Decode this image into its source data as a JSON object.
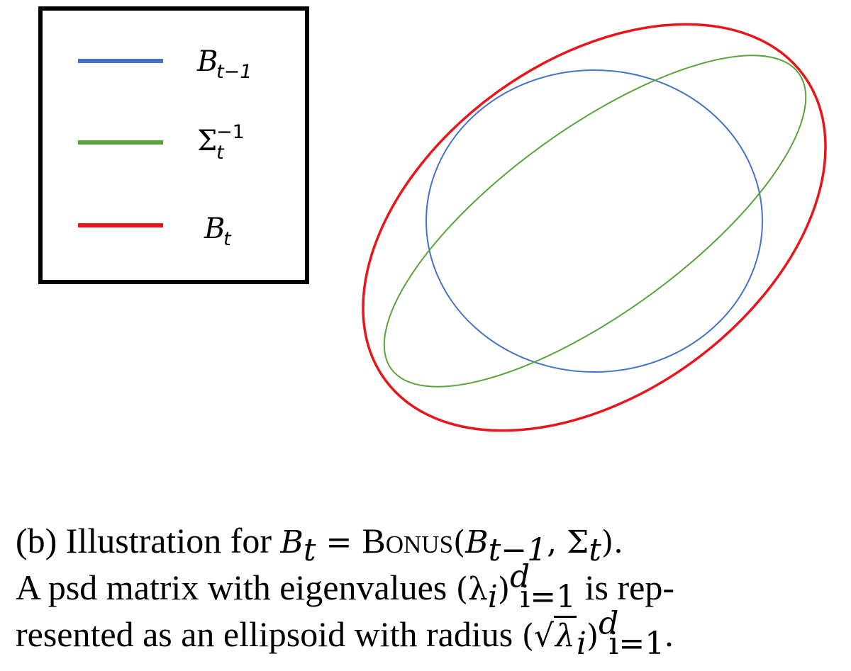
{
  "legend": {
    "items": [
      {
        "symbol": "B",
        "subscript": "t−1",
        "superscript": "",
        "color": "#4472C4"
      },
      {
        "symbol": "Σ",
        "subscript": "t",
        "superscript": "−1",
        "color": "#5AA33A"
      },
      {
        "symbol": "B",
        "subscript": "t",
        "superscript": "",
        "color": "#E8151B"
      }
    ]
  },
  "ellipses": [
    {
      "name": "B_{t-1}",
      "color": "#4472C4"
    },
    {
      "name": "Σ_t^{-1}",
      "color": "#5AA33A"
    },
    {
      "name": "B_t",
      "color": "#E8151B"
    }
  ],
  "caption": {
    "line1_prefix": "(b) Illustration for ",
    "line1_B": "B",
    "line1_t": "t",
    "line1_eq": " = ",
    "line1_bonus": "Bonus",
    "line1_args_open": "(",
    "line1_arg1": "B",
    "line1_arg1_sub": "t−1",
    "line1_comma": ", ",
    "line1_sigma": "Σ",
    "line1_sigma_sub": "t",
    "line1_end": ").",
    "line2_prefix": "A psd matrix with eigenvalues ",
    "line2_lambda": "(λ",
    "line2_i": "i",
    "line2_close": ")",
    "line2_sup": "d",
    "line2_sub": "i=1",
    "line2_suffix": " is rep-",
    "line3_prefix": "resented as an ellipsoid with radius ",
    "line3_open": "(√",
    "line3_lambda": "λ",
    "line3_i": "i",
    "line3_close": ")",
    "line3_sup": "d",
    "line3_sub": "i=1",
    "line3_end": "."
  }
}
